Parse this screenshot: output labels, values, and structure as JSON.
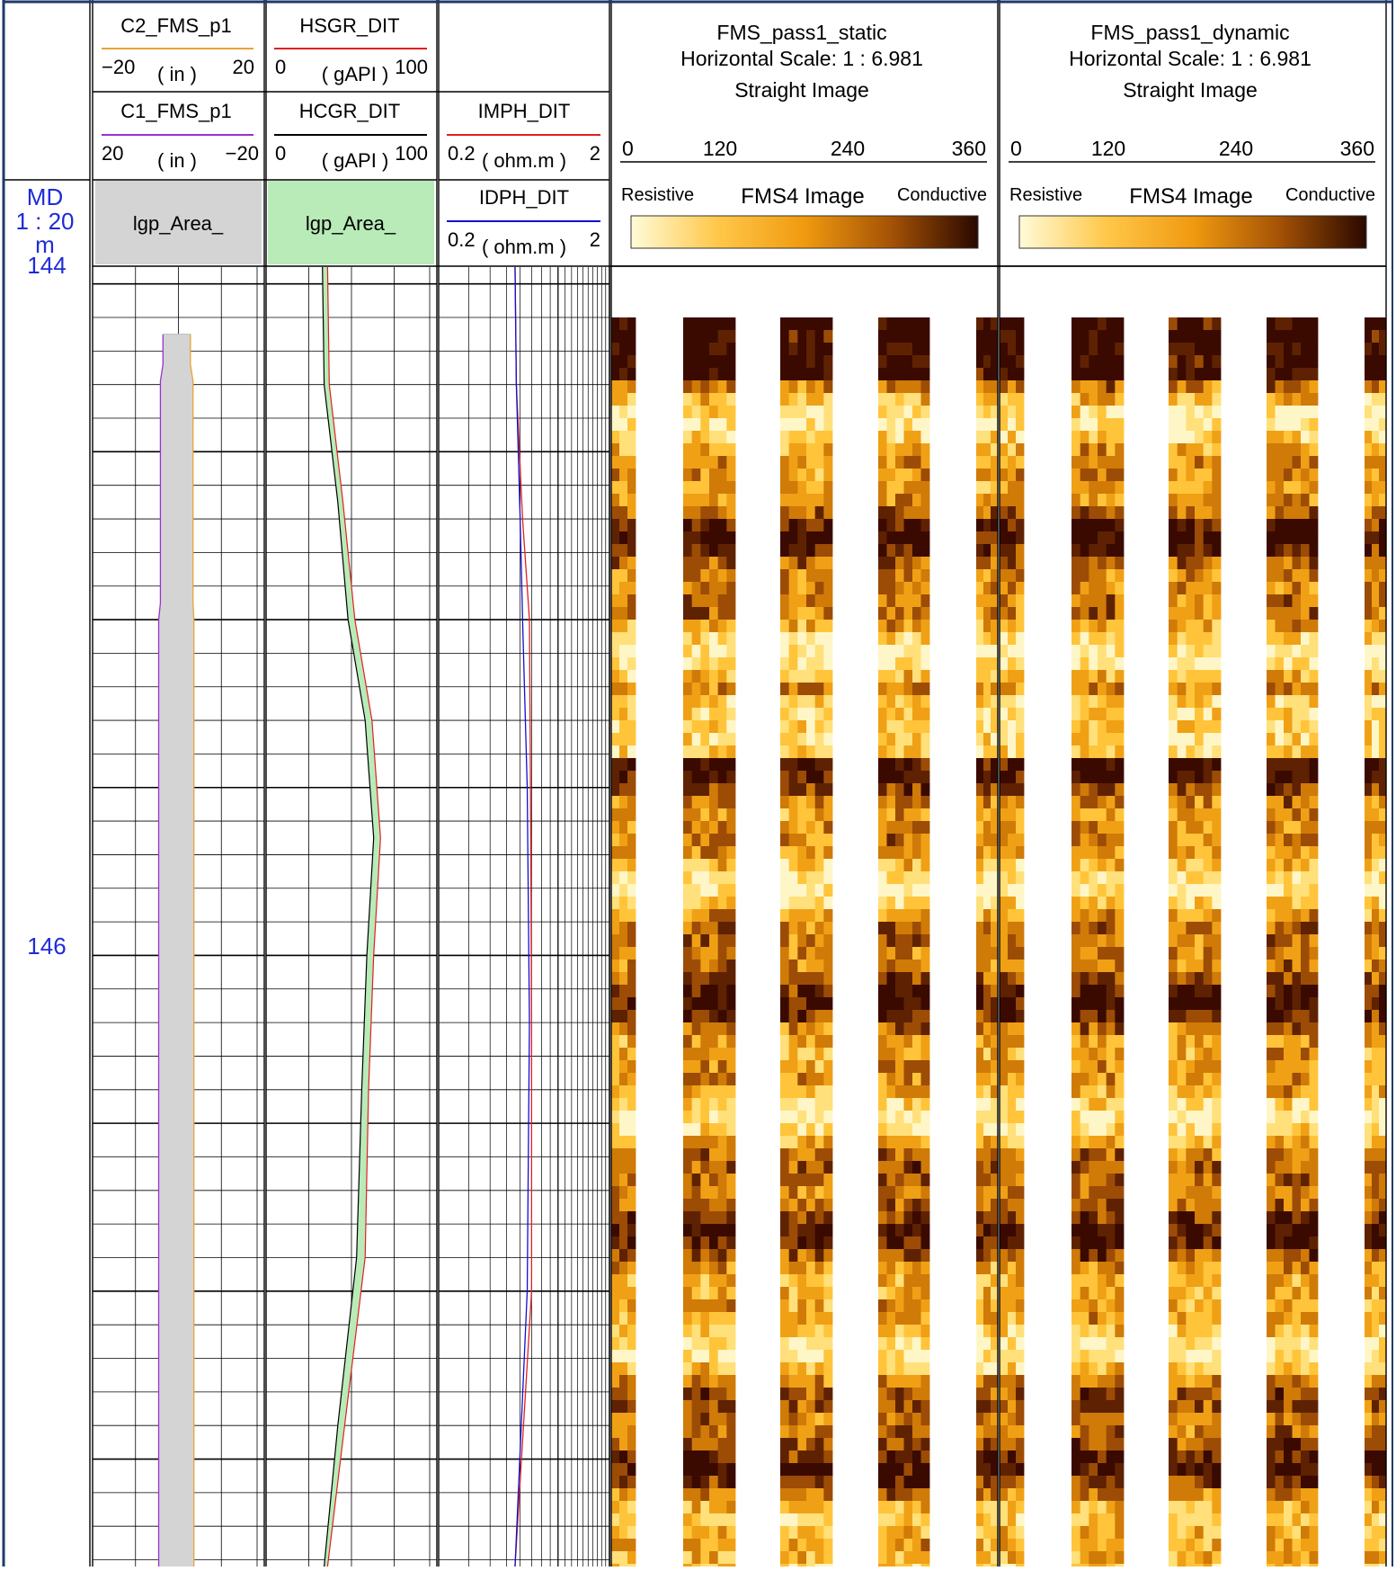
{
  "header": {
    "depth": {
      "title": "MD",
      "scale": "1 : 20",
      "unit": "m"
    },
    "caliper": {
      "c2": {
        "name": "C2_FMS_p1",
        "min": "−20",
        "unit": "( in )",
        "max": "20",
        "color": "#E8A23A"
      },
      "c1": {
        "name": "C1_FMS_p1",
        "min": "20",
        "unit": "( in )",
        "max": "−20",
        "color": "#9B30D0"
      },
      "area": "lgp_Area_"
    },
    "gamma": {
      "hsgr": {
        "name": "HSGR_DIT",
        "min": "0",
        "unit": "( gAPI )",
        "max": "100",
        "color": "#E02020"
      },
      "hcgr": {
        "name": "HCGR_DIT",
        "min": "0",
        "unit": "( gAPI )",
        "max": "100",
        "color": "#000000"
      },
      "area": "lgp_Area_"
    },
    "resistivity": {
      "imph": {
        "name": "IMPH_DIT",
        "min": "0.2",
        "unit": "( ohm.m )",
        "max": "2",
        "color": "#E02020"
      },
      "idph": {
        "name": "IDPH_DIT",
        "min": "0.2",
        "unit": "( ohm.m )",
        "max": "2",
        "color": "#1010D0"
      }
    },
    "image_static": {
      "title": "FMS_pass1_static",
      "scale": "Horizontal Scale: 1 : 6.981",
      "type": "Straight Image",
      "ticks": [
        "0",
        "120",
        "240",
        "360"
      ],
      "left": "Resistive",
      "center": "FMS4  Image",
      "right": "Conductive"
    },
    "image_dynamic": {
      "title": "FMS_pass1_dynamic",
      "scale": "Horizontal Scale: 1 : 6.981",
      "type": "Straight Image",
      "ticks": [
        "0",
        "120",
        "240",
        "360"
      ],
      "left": "Resistive",
      "center": "FMS4  Image",
      "right": "Conductive"
    }
  },
  "depth_labels": [
    "144",
    "146"
  ],
  "colors": {
    "depth_text": "#1E2BD8",
    "frame": "#1F3A68",
    "gamma_fill": "#B8EBB8",
    "caliper_fill": "#D4D4D4",
    "image_dark": "#3A0A00",
    "image_mid": "#F0A010",
    "image_light": "#FFF5C0"
  },
  "chart_data": {
    "type": "line",
    "x_axis": "depth (m)",
    "depth_range": [
      143.95,
      147.82
    ],
    "series": [
      {
        "name": "C1_FMS_p1",
        "unit": "in",
        "scale": [
          20,
          -20
        ],
        "depth": [
          144.15,
          144.24,
          144.29,
          144.95,
          145.0,
          147.82
        ],
        "values": [
          3.6,
          3.6,
          4.2,
          4.2,
          4.6,
          4.6
        ]
      },
      {
        "name": "C2_FMS_p1",
        "unit": "in",
        "scale": [
          -20,
          20
        ],
        "depth": [
          144.15,
          144.24,
          144.29,
          144.95,
          145.0,
          147.82
        ],
        "values": [
          2.8,
          2.8,
          3.4,
          3.4,
          3.6,
          3.6
        ]
      },
      {
        "name": "HSGR_DIT",
        "unit": "gAPI",
        "scale": [
          0,
          100
        ],
        "depth": [
          143.95,
          144.3,
          144.65,
          145.0,
          145.3,
          145.65,
          146.0,
          146.4,
          146.9,
          147.4,
          147.82
        ],
        "values": [
          36,
          37,
          45,
          52,
          62,
          67,
          63,
          60,
          58,
          46,
          36
        ]
      },
      {
        "name": "HCGR_DIT",
        "unit": "gAPI",
        "scale": [
          0,
          100
        ],
        "depth": [
          143.95,
          144.3,
          144.65,
          145.0,
          145.3,
          145.65,
          146.0,
          146.4,
          146.9,
          147.4,
          147.82
        ],
        "values": [
          33,
          34,
          42,
          48,
          58,
          63,
          59,
          56,
          53,
          42,
          34
        ]
      },
      {
        "name": "IMPH_DIT",
        "unit": "ohm.m",
        "scale": [
          0.2,
          2
        ],
        "depth": [
          143.95,
          144.3,
          144.7,
          145.0,
          145.5,
          146.2,
          147.0,
          147.82
        ],
        "values": [
          0.56,
          0.57,
          0.62,
          0.68,
          0.69,
          0.7,
          0.7,
          0.56
        ]
      },
      {
        "name": "IDPH_DIT",
        "unit": "ohm.m",
        "scale": [
          0.2,
          2
        ],
        "depth": [
          143.95,
          144.3,
          144.7,
          145.0,
          145.5,
          146.2,
          147.0,
          147.82
        ],
        "values": [
          0.56,
          0.57,
          0.6,
          0.62,
          0.66,
          0.68,
          0.66,
          0.56
        ]
      }
    ],
    "grid": true
  }
}
